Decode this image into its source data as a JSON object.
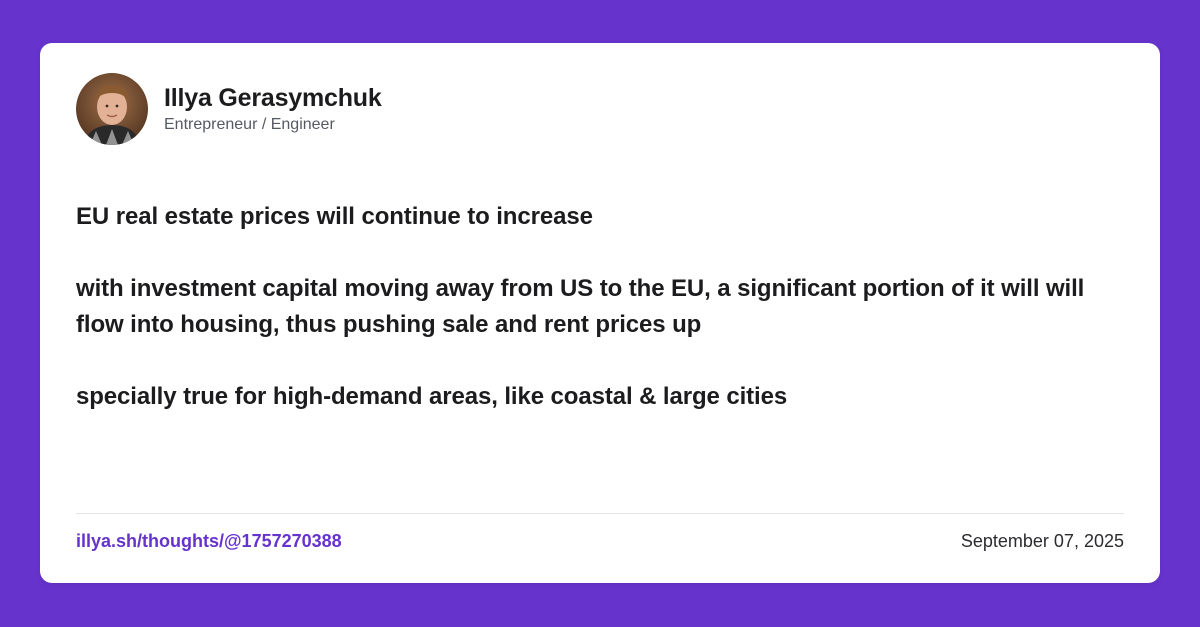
{
  "colors": {
    "background": "#6633cc",
    "card": "#ffffff",
    "text": "#1c1c1e",
    "link": "#6633cc"
  },
  "author": {
    "name": "Illya Gerasymchuk",
    "title": "Entrepreneur / Engineer",
    "avatar_icon": "profile-photo"
  },
  "post": {
    "paragraphs": [
      "EU real estate prices will continue to increase",
      "with investment capital moving away from US to the EU, a significant portion of it will will flow into housing, thus pushing sale and rent prices up",
      "specially true for high-demand areas, like coastal & large cities"
    ]
  },
  "footer": {
    "link": "illya.sh/thoughts/@1757270388",
    "date": "September 07, 2025"
  }
}
